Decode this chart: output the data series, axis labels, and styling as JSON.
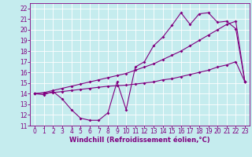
{
  "xlabel": "Windchill (Refroidissement éolien,°C)",
  "bg_color": "#c5ecee",
  "grid_color": "#b0d8da",
  "line_color": "#800080",
  "xlim": [
    -0.5,
    23.5
  ],
  "ylim": [
    11,
    22.5
  ],
  "xticks": [
    0,
    1,
    2,
    3,
    4,
    5,
    6,
    7,
    8,
    9,
    10,
    11,
    12,
    13,
    14,
    15,
    16,
    17,
    18,
    19,
    20,
    21,
    22,
    23
  ],
  "yticks": [
    11,
    12,
    13,
    14,
    15,
    16,
    17,
    18,
    19,
    20,
    21,
    22
  ],
  "line1_x": [
    0,
    1,
    2,
    3,
    4,
    5,
    6,
    7,
    8,
    9,
    10,
    11,
    12,
    13,
    14,
    15,
    16,
    17,
    18,
    19,
    20,
    21,
    22,
    23
  ],
  "line1_y": [
    14.0,
    13.9,
    14.2,
    13.5,
    12.5,
    11.7,
    11.5,
    11.5,
    12.2,
    15.1,
    12.5,
    16.5,
    17.0,
    18.5,
    19.3,
    20.4,
    21.6,
    20.5,
    21.5,
    21.6,
    20.7,
    20.8,
    20.1,
    15.1
  ],
  "line2_x": [
    0,
    1,
    2,
    3,
    4,
    5,
    6,
    7,
    8,
    9,
    10,
    11,
    12,
    13,
    14,
    15,
    16,
    17,
    18,
    19,
    20,
    21,
    22,
    23
  ],
  "line2_y": [
    14.0,
    14.05,
    14.1,
    14.2,
    14.3,
    14.4,
    14.5,
    14.6,
    14.7,
    14.75,
    14.8,
    14.9,
    15.0,
    15.1,
    15.3,
    15.4,
    15.6,
    15.8,
    16.0,
    16.2,
    16.5,
    16.7,
    17.0,
    15.1
  ],
  "line3_x": [
    0,
    1,
    2,
    3,
    4,
    5,
    6,
    7,
    8,
    9,
    10,
    11,
    12,
    13,
    14,
    15,
    16,
    17,
    18,
    19,
    20,
    21,
    22,
    23
  ],
  "line3_y": [
    14.0,
    14.1,
    14.3,
    14.5,
    14.7,
    14.9,
    15.1,
    15.3,
    15.5,
    15.7,
    15.9,
    16.2,
    16.5,
    16.8,
    17.2,
    17.6,
    18.0,
    18.5,
    19.0,
    19.5,
    20.0,
    20.5,
    20.8,
    15.1
  ],
  "markersize": 2.0,
  "linewidth": 0.8,
  "xlabel_fontsize": 6,
  "tick_fontsize": 5.5
}
